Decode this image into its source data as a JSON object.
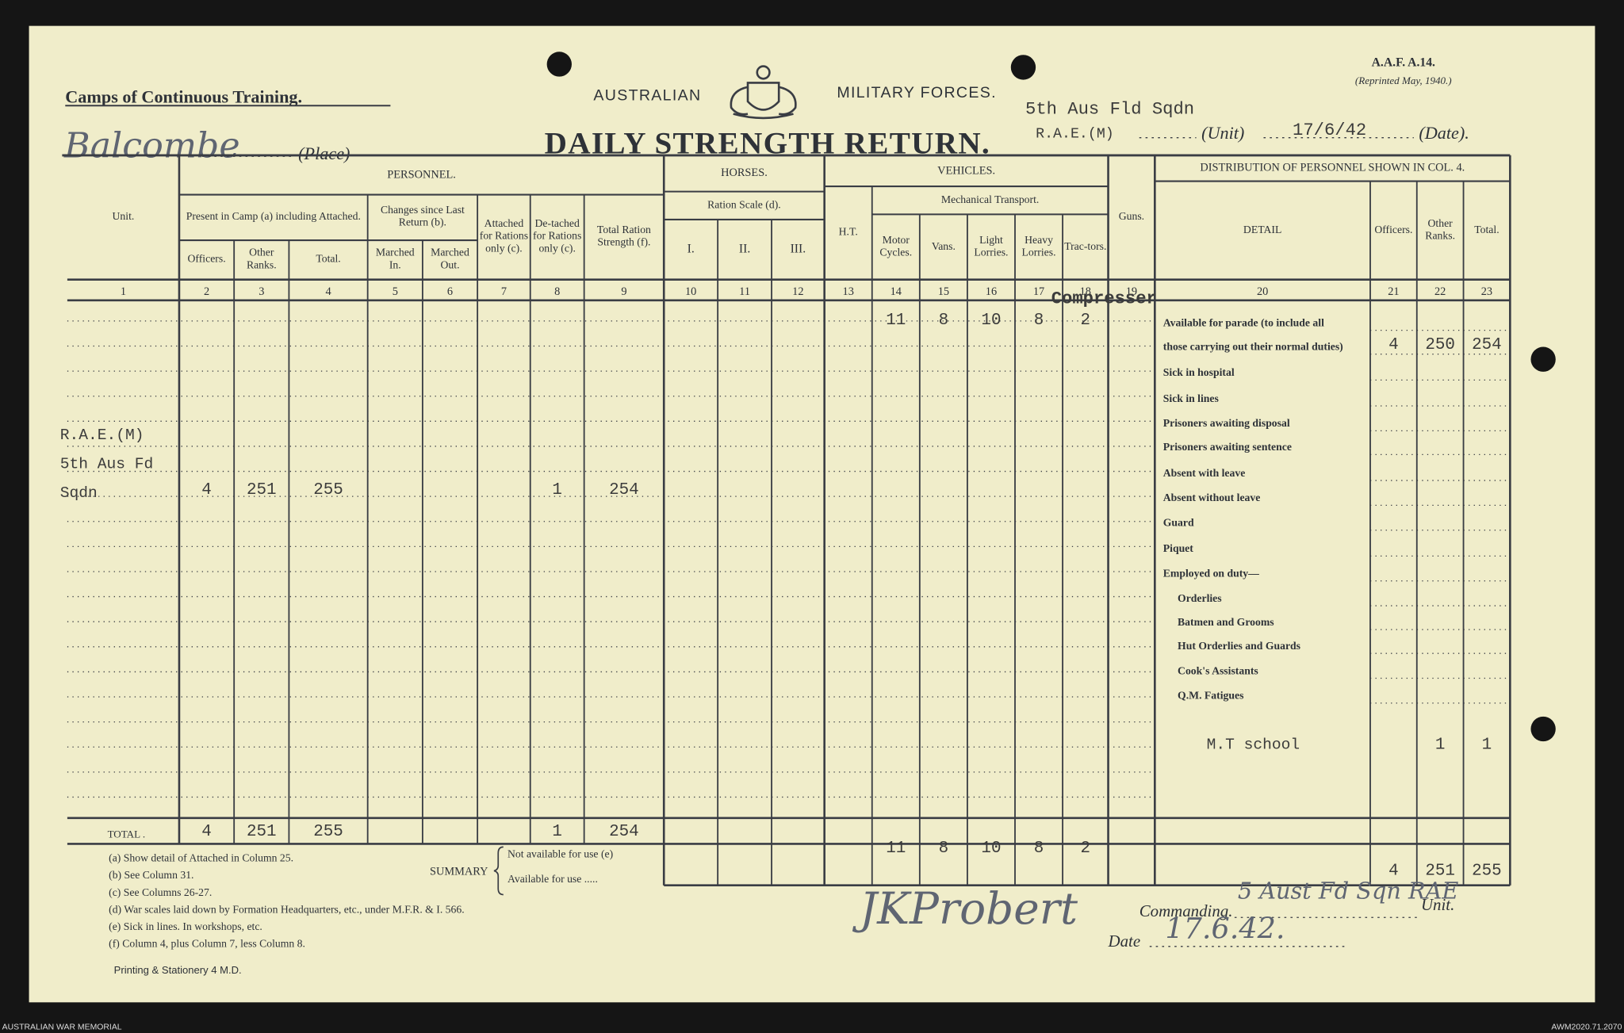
{
  "header": {
    "series": "Camps of Continuous Training.",
    "forces_left": "AUSTRALIAN",
    "forces_right": "MILITARY FORCES.",
    "form_number": "A.A.F. A.14.",
    "reprint": "(Reprinted May, 1940.)",
    "title": "DAILY STRENGTH RETURN.",
    "place": "Balcombe",
    "place_label": "(Place)",
    "unit_line1": "5th Aus Fld Sqdn",
    "unit_line2": "R.A.E.(M)",
    "unit_label": "(Unit)",
    "date": "17/6/42",
    "date_label": "(Date)."
  },
  "table": {
    "groups": [
      "PERSONNEL.",
      "HORSES.",
      "VEHICLES.",
      "DISTRIBUTION OF PERSONNEL SHOWN IN COL. 4."
    ],
    "subgroups": [
      "Present in Camp (a) including Attached.",
      "Changes since Last Return (b).",
      "Ration Scale (d).",
      "Mechanical Transport."
    ],
    "columns": [
      "Unit.",
      "Officers.",
      "Other Ranks.",
      "Total.",
      "Marched In.",
      "Marched Out.",
      "Attached for Rations only (c).",
      "De-tached for Rations only (c).",
      "Total Ration Strength (f).",
      "I.",
      "II.",
      "III.",
      "H.T.",
      "Motor Cycles.",
      "Vans.",
      "Light Lorries.",
      "Heavy Lorries.",
      "Trac-tors.",
      "Guns.",
      "DETAIL",
      "Officers.",
      "Other Ranks.",
      "Total."
    ],
    "column_numbers": [
      "1",
      "2",
      "3",
      "4",
      "5",
      "6",
      "7",
      "8",
      "9",
      "10",
      "11",
      "12",
      "13",
      "14",
      "15",
      "16",
      "17",
      "18",
      "19",
      "20",
      "21",
      "22",
      "23"
    ],
    "unit_entry": [
      "R.A.E.(M)",
      "5th Aus Fd",
      "Sqdn"
    ],
    "row": [
      null,
      "4",
      "251",
      "255",
      null,
      null,
      null,
      "1",
      "254"
    ],
    "vehicle_note": "Compresser",
    "vehicle_row": [
      "11",
      "8",
      "10",
      "8",
      "2"
    ],
    "total_label": "TOTAL .",
    "totals": [
      null,
      "4",
      "251",
      "255",
      null,
      null,
      null,
      "1",
      "254"
    ],
    "vehicle_totals": [
      "11",
      "8",
      "10",
      "8",
      "2"
    ]
  },
  "distribution": {
    "items": [
      "Available for parade (to include all",
      "those carrying out their normal duties)",
      "Sick in hospital",
      "Sick in lines",
      "Prisoners awaiting disposal",
      "Prisoners awaiting sentence",
      "Absent with leave",
      "Absent without leave",
      "Guard",
      "Piquet",
      "Employed on duty—",
      "Orderlies",
      "Batmen and Grooms",
      "Hut Orderlies and Guards",
      "Cook's Assistants",
      "Q.M. Fatigues"
    ],
    "available_values": [
      "4",
      "250",
      "254"
    ],
    "extra_item": "M.T school",
    "extra_values": [
      "1",
      "1"
    ],
    "totals": [
      "4",
      "251",
      "255"
    ]
  },
  "footnotes": [
    "(a) Show detail of Attached in Column 25.",
    "(b) See Column 31.",
    "(c) See Columns 26-27.",
    "(d) War scales laid down by Formation Headquarters, etc., under M.F.R. & I. 566.",
    "(e) Sick in lines.  In workshops, etc.",
    "(f) Column 4, plus Column 7, less Column 8."
  ],
  "summary": {
    "label": "SUMMARY",
    "lines": [
      "Not available for use (e)",
      "Available for use ....."
    ]
  },
  "signature": {
    "name": "JKProbert",
    "commanding_label": "Commanding.",
    "unit_handwritten": "5 Aust Fd Sqn RAE",
    "unit_label": "Unit.",
    "date_label": "Date",
    "date": "17.6.42."
  },
  "printer": "Printing & Stationery 4 M.D.",
  "archive": {
    "institution": "AUSTRALIAN WAR MEMORIAL",
    "reference": "AWM2020.71.2070"
  }
}
